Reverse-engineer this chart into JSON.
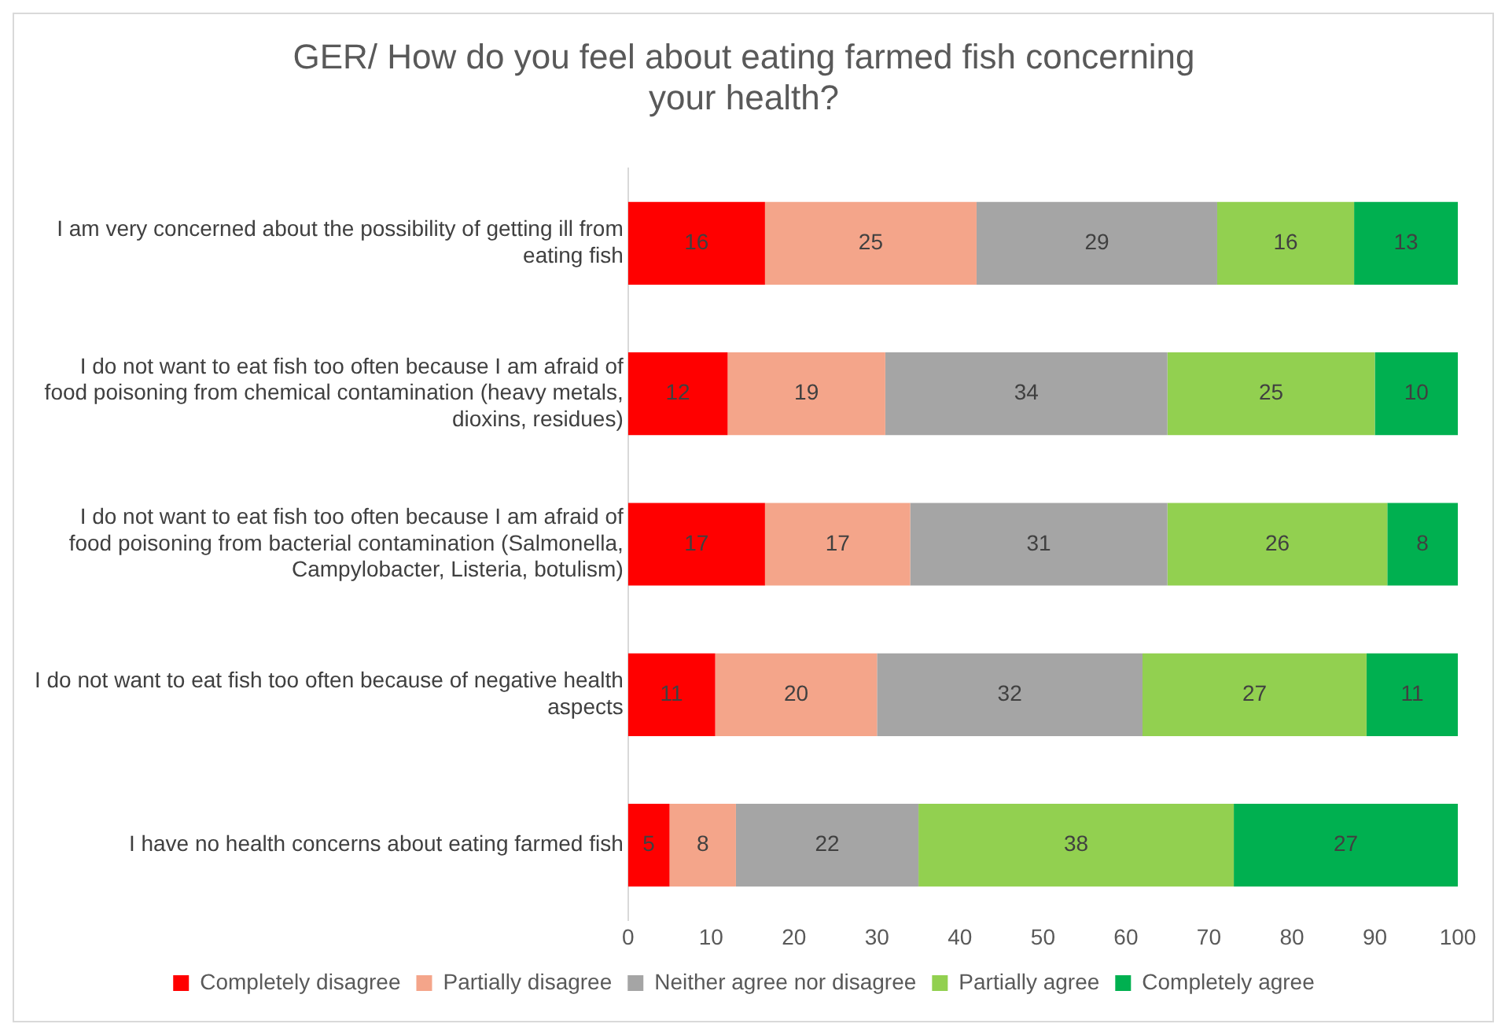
{
  "chart_data": {
    "type": "bar",
    "orientation": "horizontal",
    "stacked": true,
    "title": "GER/ How do you feel about eating farmed fish concerning your health?",
    "categories": [
      "I am very concerned about the possibility of getting ill from eating fish",
      "I do not want to eat fish too often because I am afraid of food poisoning from chemical contamination (heavy metals, dioxins, residues)",
      "I do not want to eat fish too often because I am afraid of food poisoning from bacterial contamination (Salmonella, Campylobacter, Listeria, botulism)",
      "I do not want to eat fish too often because of negative health aspects",
      "I have no health concerns about eating farmed fish"
    ],
    "series": [
      {
        "name": "Completely disagree",
        "color": "#ff0000",
        "values": [
          16.5,
          12,
          16.5,
          10.5,
          5
        ],
        "value_labels": [
          "16",
          "12",
          "17",
          "11",
          "5"
        ]
      },
      {
        "name": "Partially disagree",
        "color": "#f4a58a",
        "values": [
          25.5,
          19,
          17.5,
          19.5,
          8
        ],
        "value_labels": [
          "25",
          "19",
          "17",
          "20",
          "8"
        ]
      },
      {
        "name": "Neither agree nor disagree",
        "color": "#a5a5a5",
        "values": [
          29,
          34,
          31,
          32,
          22
        ],
        "value_labels": [
          "29",
          "34",
          "31",
          "32",
          "22"
        ]
      },
      {
        "name": "Partially agree",
        "color": "#92d050",
        "values": [
          16.5,
          25,
          26.5,
          27,
          38
        ],
        "value_labels": [
          "16",
          "25",
          "26",
          "27",
          "38"
        ]
      },
      {
        "name": "Completely agree",
        "color": "#00b050",
        "values": [
          12.5,
          10,
          8.5,
          11,
          27
        ],
        "value_labels": [
          "13",
          "10",
          "8",
          "11",
          "27"
        ]
      }
    ],
    "xlim": [
      0,
      100
    ],
    "xticks": [
      0,
      10,
      20,
      30,
      40,
      50,
      60,
      70,
      80,
      90,
      100
    ],
    "grid": false,
    "legend": "bottom"
  }
}
